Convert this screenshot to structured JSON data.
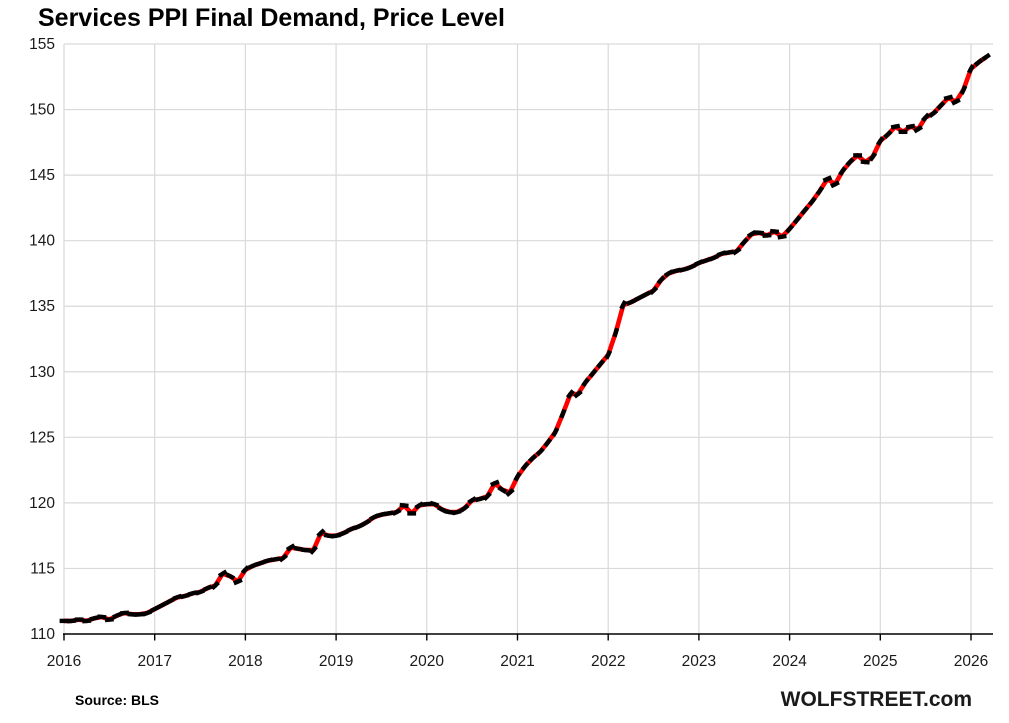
{
  "title": "Services PPI Final Demand, Price Level",
  "footer": {
    "source": "Source: BLS",
    "branding": "WOLFSTREET.com"
  },
  "colors": {
    "line": "#ff0000",
    "marker": "#000000",
    "grid": "#d9d9d9",
    "axis": "#000000",
    "text": "#1a1a1a",
    "background": "#ffffff"
  },
  "chart_data": {
    "type": "line",
    "title": "Services PPI Final Demand, Price Level",
    "xlabel": "",
    "ylabel": "",
    "frequency": "monthly",
    "x_start": "2016-01",
    "x_end": "2026-03",
    "x_tick_labels": [
      "2016",
      "2017",
      "2018",
      "2019",
      "2020",
      "2021",
      "2022",
      "2023",
      "2024",
      "2025",
      "2026"
    ],
    "ylim": [
      110,
      155
    ],
    "y_ticks": [
      110,
      115,
      120,
      125,
      130,
      135,
      140,
      145,
      150,
      155
    ],
    "grid": true,
    "legend": false,
    "series": [
      {
        "name": "Services PPI Final Demand index",
        "style": "red line with black dash markers",
        "values": [
          111.0,
          111.0,
          111.1,
          111.0,
          111.2,
          111.3,
          111.1,
          111.4,
          111.6,
          111.5,
          111.5,
          111.6,
          111.9,
          112.2,
          112.5,
          112.8,
          112.9,
          113.1,
          113.2,
          113.5,
          113.7,
          114.6,
          114.4,
          114.0,
          114.9,
          115.2,
          115.4,
          115.6,
          115.7,
          115.8,
          116.6,
          116.5,
          116.4,
          116.4,
          117.7,
          117.5,
          117.5,
          117.7,
          118.0,
          118.2,
          118.5,
          118.9,
          119.1,
          119.2,
          119.3,
          119.8,
          119.2,
          119.8,
          119.9,
          119.9,
          119.5,
          119.3,
          119.3,
          119.6,
          120.2,
          120.3,
          120.5,
          121.5,
          121.0,
          120.8,
          122.0,
          122.8,
          123.4,
          123.9,
          124.6,
          125.4,
          126.8,
          128.3,
          128.3,
          129.2,
          129.9,
          130.6,
          131.3,
          133.0,
          135.1,
          135.3,
          135.6,
          135.9,
          136.2,
          137.0,
          137.5,
          137.7,
          137.8,
          138.0,
          138.3,
          138.5,
          138.7,
          139.0,
          139.1,
          139.2,
          139.9,
          140.5,
          140.6,
          140.4,
          140.7,
          140.3,
          140.9,
          141.6,
          142.3,
          143.0,
          143.8,
          144.7,
          144.3,
          145.3,
          146.0,
          146.5,
          146.0,
          146.4,
          147.6,
          148.1,
          148.7,
          148.3,
          148.7,
          148.5,
          149.4,
          149.7,
          150.3,
          150.9,
          150.6,
          151.5,
          153.1,
          153.6,
          154.0
        ]
      }
    ]
  }
}
